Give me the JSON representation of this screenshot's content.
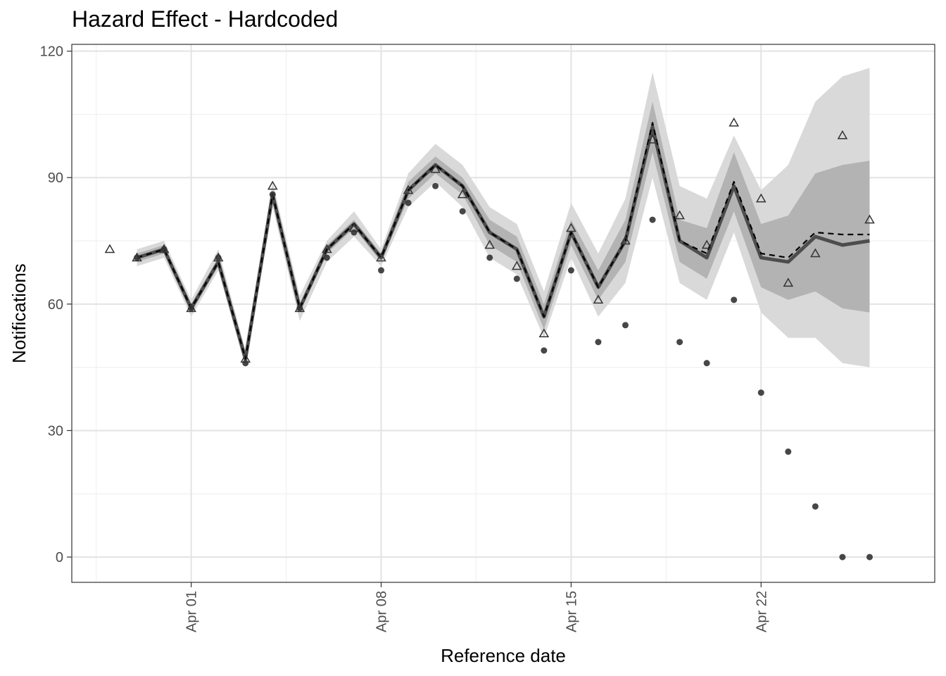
{
  "chart_data": {
    "type": "line",
    "title": "Hazard Effect - Hardcoded",
    "xlabel": "Reference date",
    "ylabel": "Notifications",
    "x_tick_labels": [
      "Apr 01",
      "Apr 08",
      "Apr 15",
      "Apr 22"
    ],
    "x_tick_dates": [
      "2021-04-01",
      "2021-04-08",
      "2021-04-15",
      "2021-04-22"
    ],
    "xlim": [
      "2021-03-29",
      "2021-04-27"
    ],
    "ylim": [
      0,
      120
    ],
    "y_ticks": [
      0,
      30,
      60,
      90,
      120
    ],
    "grid": true,
    "dates": [
      "2021-03-29",
      "2021-03-30",
      "2021-03-31",
      "2021-04-01",
      "2021-04-02",
      "2021-04-03",
      "2021-04-04",
      "2021-04-05",
      "2021-04-06",
      "2021-04-07",
      "2021-04-08",
      "2021-04-09",
      "2021-04-10",
      "2021-04-11",
      "2021-04-12",
      "2021-04-13",
      "2021-04-14",
      "2021-04-15",
      "2021-04-16",
      "2021-04-17",
      "2021-04-18",
      "2021-04-19",
      "2021-04-20",
      "2021-04-21",
      "2021-04-22",
      "2021-04-23",
      "2021-04-24",
      "2021-04-25",
      "2021-04-26"
    ],
    "series": [
      {
        "marker": "filled circle",
        "values": [
          null,
          71,
          73,
          59,
          71,
          46,
          86,
          59,
          71,
          77,
          68,
          84,
          88,
          82,
          71,
          66,
          49,
          68,
          51,
          55,
          80,
          51,
          46,
          61,
          39,
          25,
          12,
          0,
          0
        ]
      },
      {
        "marker": "open triangle",
        "values": [
          73,
          71,
          73,
          59,
          71,
          47,
          88,
          59,
          73,
          78,
          71,
          87,
          92,
          86,
          74,
          69,
          53,
          78,
          61,
          75,
          99,
          81,
          74,
          103,
          85,
          65,
          72,
          100,
          80
        ]
      },
      {
        "line": "solid thick",
        "values": [
          null,
          71,
          73,
          59,
          70,
          47,
          86,
          59,
          73,
          79,
          71,
          87,
          93,
          88,
          77,
          73,
          57,
          77,
          64,
          75,
          102,
          75,
          71,
          88,
          71,
          70,
          76,
          74,
          75
        ]
      },
      {
        "line": "dashed",
        "values": [
          null,
          71,
          73,
          59,
          70,
          47,
          86,
          59,
          73,
          79,
          71,
          87,
          93,
          88,
          77,
          73,
          57,
          77,
          64,
          75,
          103,
          75,
          72,
          89,
          72,
          71,
          77,
          76.5,
          76.5
        ]
      }
    ],
    "ribbons": [
      {
        "shade": "light",
        "upper": [
          null,
          73,
          75,
          61,
          73,
          49,
          89,
          62,
          75,
          82,
          73,
          91,
          98,
          93,
          83,
          79,
          63,
          84,
          72,
          85,
          115,
          88,
          85,
          100,
          87,
          93,
          108,
          114,
          116
        ],
        "lower": [
          null,
          69,
          71,
          57,
          68,
          45,
          83,
          56,
          70,
          76,
          69,
          83,
          89,
          83,
          71,
          67,
          52,
          71,
          57,
          65,
          90,
          65,
          61,
          77,
          58,
          52,
          52,
          46,
          45
        ]
      },
      {
        "shade": "dark",
        "upper": [
          null,
          72,
          74,
          60,
          71,
          48,
          87,
          60,
          74,
          80,
          72,
          89,
          95,
          90,
          80,
          76,
          60,
          80,
          68,
          80,
          108,
          80,
          78,
          96,
          79,
          81,
          91,
          93,
          94
        ],
        "lower": [
          null,
          70,
          72,
          58,
          69,
          46,
          85,
          58,
          72,
          78,
          70,
          85,
          91,
          86,
          74,
          70,
          54,
          74,
          61,
          70,
          96,
          70,
          66,
          82,
          64,
          61,
          63,
          59,
          58
        ]
      }
    ],
    "colors": {
      "ribbon_light": "#d9d9d9",
      "ribbon_dark": "#a6a6a6",
      "line": "#4d4d4d",
      "dash": "#000000",
      "points": "#333333",
      "grid_major": "#e3e3e3",
      "grid_minor": "#f1f1f1",
      "panel_border": "#333333"
    }
  }
}
